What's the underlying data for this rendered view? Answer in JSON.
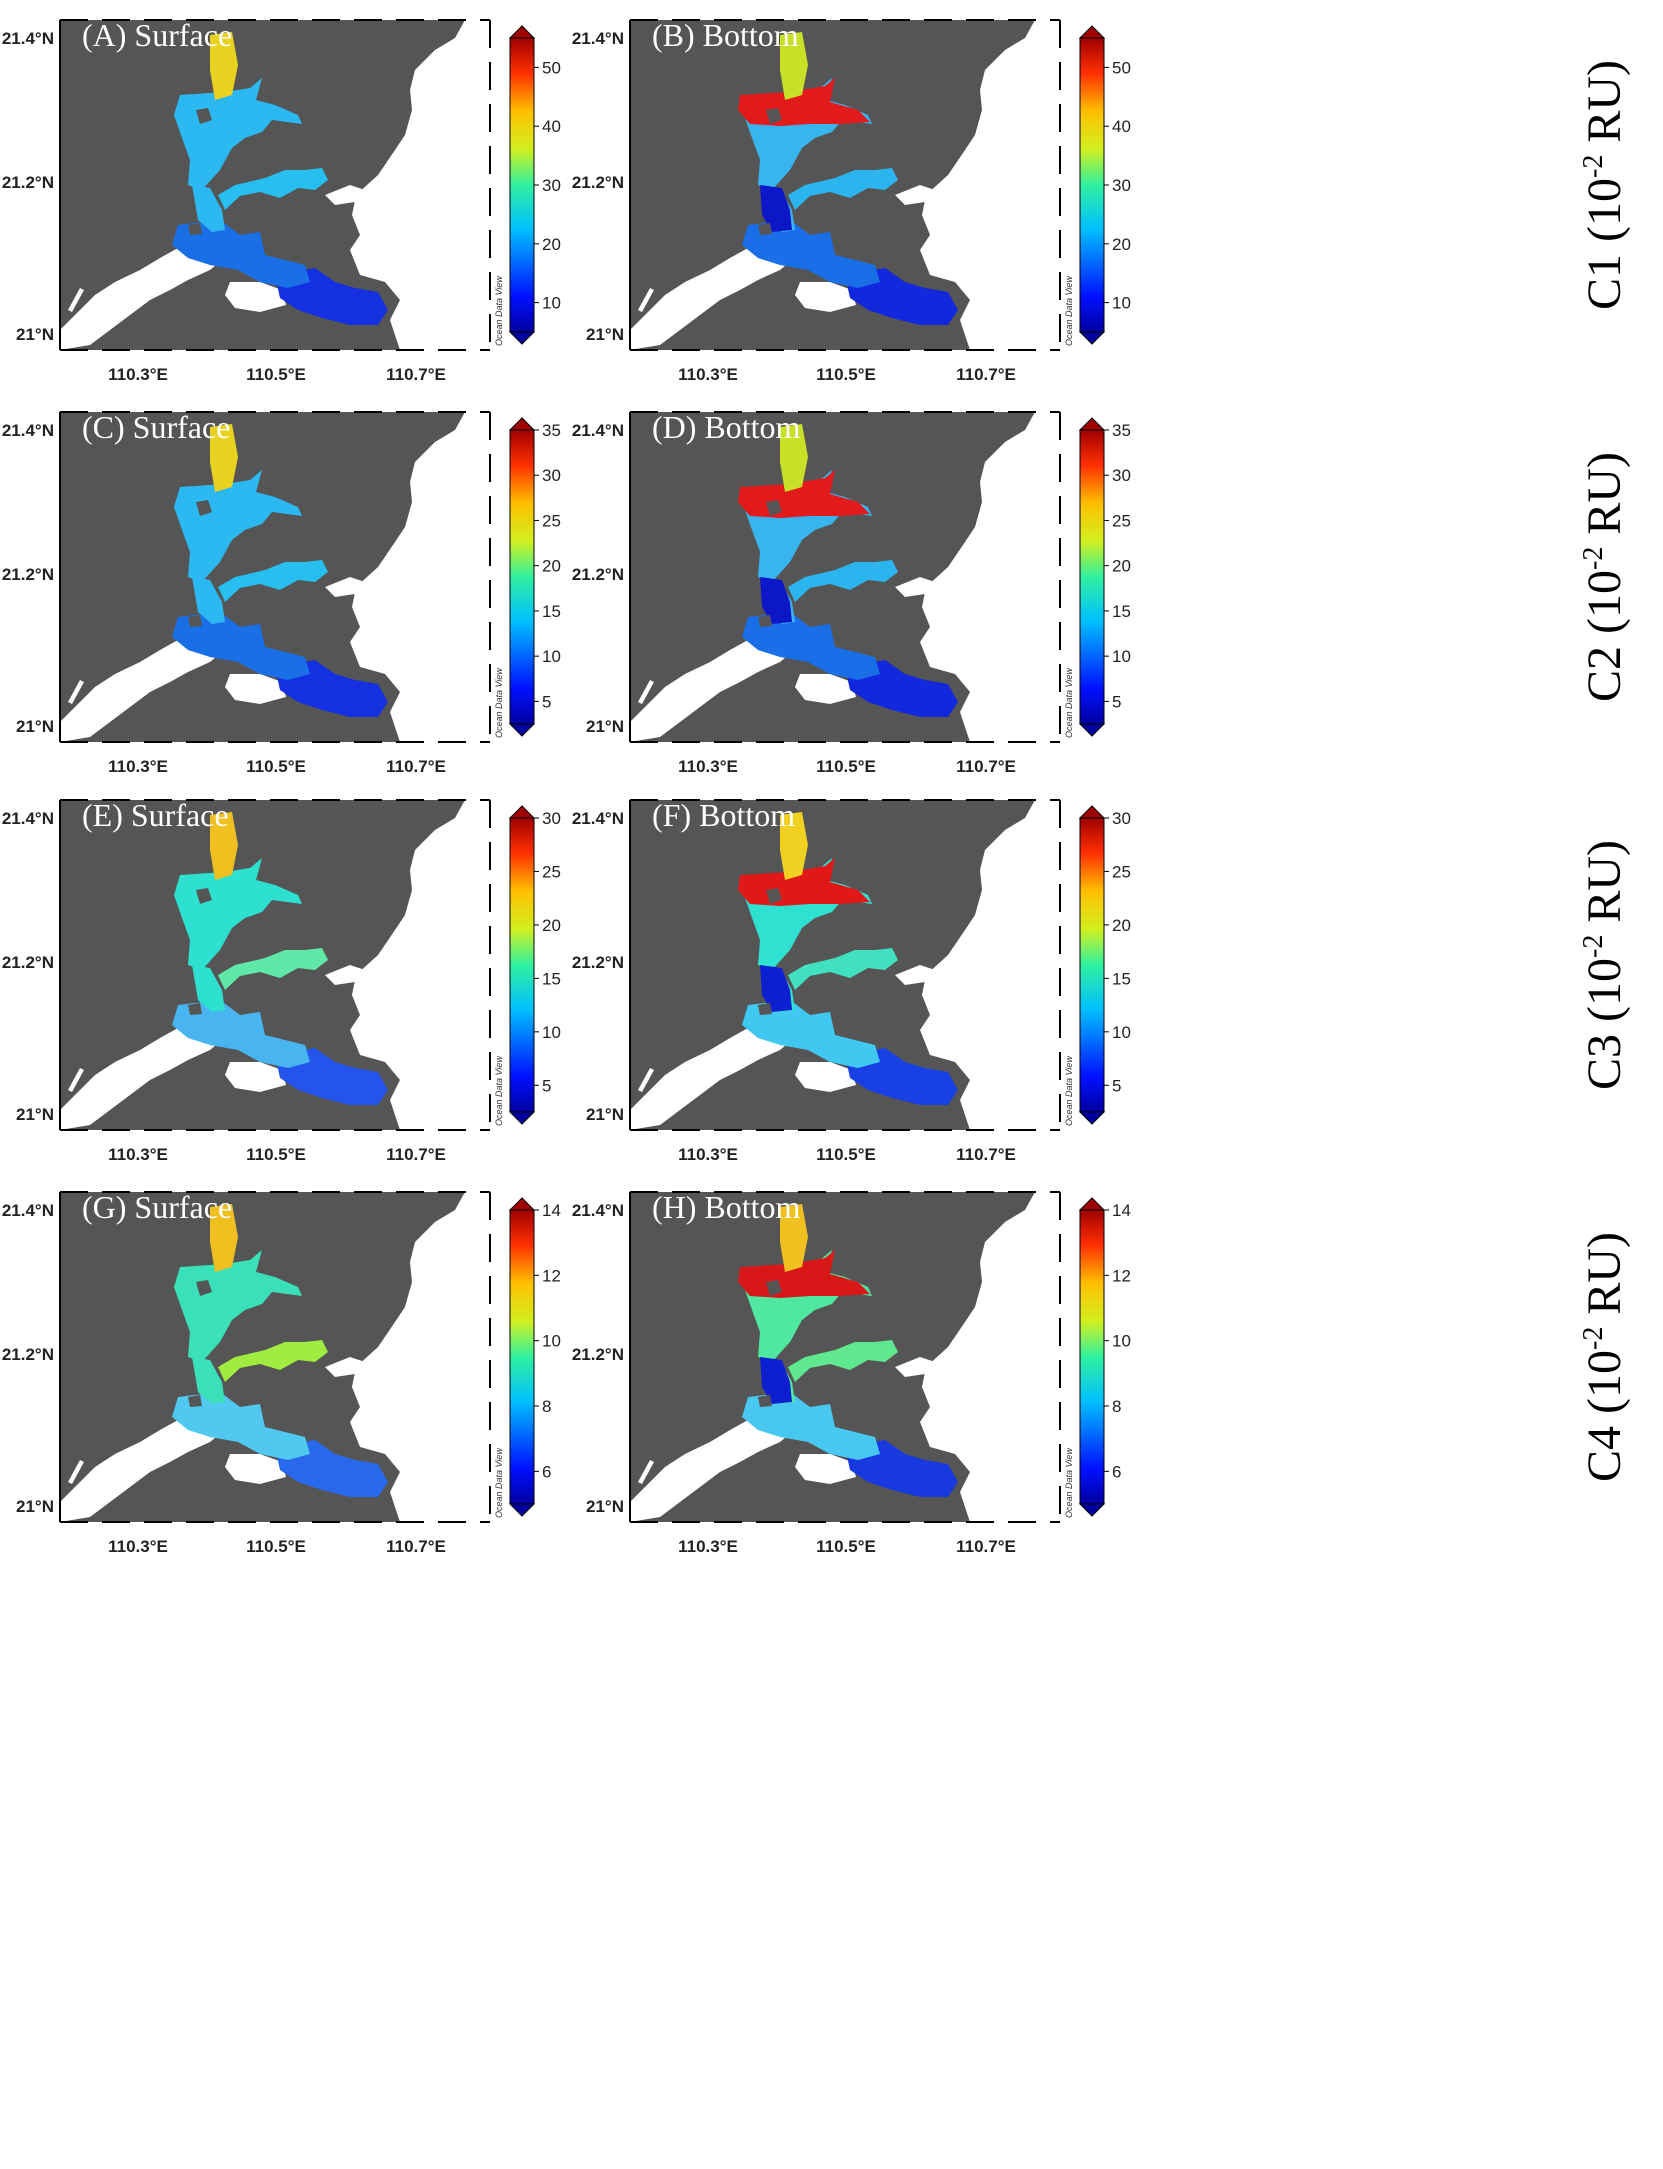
{
  "figure": {
    "watermark": "Ocean Data View",
    "lat_labels": [
      "21.4°N",
      "21.2°N",
      "21°N"
    ],
    "lon_labels": [
      "110.3°E",
      "110.5°E",
      "110.7°E"
    ],
    "rows": [
      {
        "label_prefix": "C1 (10",
        "label_sup": "-2",
        "label_suffix": " RU)",
        "colorbar_ticks": [
          "10",
          "20",
          "30",
          "40",
          "50"
        ],
        "colorbar_min": 5,
        "colorbar_max": 55
      },
      {
        "label_prefix": "C2 (10",
        "label_sup": "-2",
        "label_suffix": " RU)",
        "colorbar_ticks": [
          "5",
          "10",
          "15",
          "20",
          "25",
          "30",
          "35"
        ],
        "colorbar_min": 2.5,
        "colorbar_max": 35
      },
      {
        "label_prefix": "C3 (10",
        "label_sup": "-2",
        "label_suffix": " RU)",
        "colorbar_ticks": [
          "5",
          "10",
          "15",
          "20",
          "25",
          "30"
        ],
        "colorbar_min": 2.5,
        "colorbar_max": 30
      },
      {
        "label_prefix": "C4 (10",
        "label_sup": "-2",
        "label_suffix": " RU)",
        "colorbar_ticks": [
          "6",
          "8",
          "10",
          "12",
          "14"
        ],
        "colorbar_min": 5,
        "colorbar_max": 14
      }
    ],
    "panels": [
      {
        "id": "A",
        "title": "(A) Surface",
        "layer": "surface",
        "colors": {
          "up": "#e8d21f",
          "mid": "#2cb8f0",
          "south": "#1a6fe6",
          "outer": "#1430e0",
          "branch": "#26bff0"
        }
      },
      {
        "id": "B",
        "title": "(B) Bottom",
        "layer": "bottom",
        "colors": {
          "up": "#c8e028",
          "mid": "#38b4ee",
          "south": "#1a6ee8",
          "outer": "#1228dc",
          "branch": "#2cb4ee",
          "high": "#e31a1c",
          "core": "#0c18c8"
        }
      },
      {
        "id": "C",
        "title": "(C) Surface",
        "layer": "surface",
        "colors": {
          "up": "#e8d21f",
          "mid": "#2cb8f0",
          "south": "#1a6fe6",
          "outer": "#1430e0",
          "branch": "#26bff0"
        }
      },
      {
        "id": "D",
        "title": "(D) Bottom",
        "layer": "bottom",
        "colors": {
          "up": "#c8e028",
          "mid": "#38b4ee",
          "south": "#1a6ee8",
          "outer": "#1228dc",
          "branch": "#2cb4ee",
          "high": "#e31a1c",
          "core": "#0c18c8"
        }
      },
      {
        "id": "E",
        "title": "(E) Surface",
        "layer": "surface",
        "colors": {
          "up": "#f0c020",
          "mid": "#2ee0d0",
          "south": "#48b4f0",
          "outer": "#2454ec",
          "branch": "#60e8a8"
        }
      },
      {
        "id": "F",
        "title": "(F) Bottom",
        "layer": "bottom",
        "colors": {
          "up": "#f0d020",
          "mid": "#30e0d0",
          "south": "#40c8f0",
          "outer": "#1840e4",
          "branch": "#40e0c0",
          "high": "#e01818",
          "core": "#0c20d0"
        }
      },
      {
        "id": "G",
        "title": "(G) Surface",
        "layer": "surface",
        "colors": {
          "up": "#f0c020",
          "mid": "#3ae0b8",
          "south": "#50c8f0",
          "outer": "#2868ec",
          "branch": "#a0ec40"
        }
      },
      {
        "id": "H",
        "title": "(H) Bottom",
        "layer": "bottom",
        "colors": {
          "up": "#f0c020",
          "mid": "#50e8a0",
          "south": "#48c8f0",
          "outer": "#1838e0",
          "branch": "#60e890",
          "high": "#d81818",
          "core": "#0c20d0"
        }
      }
    ]
  }
}
